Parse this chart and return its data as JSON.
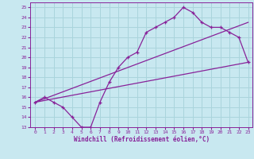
{
  "xlabel": "Windchill (Refroidissement éolien,°C)",
  "xlim": [
    -0.5,
    23.5
  ],
  "ylim": [
    13,
    25.5
  ],
  "xticks": [
    0,
    1,
    2,
    3,
    4,
    5,
    6,
    7,
    8,
    9,
    10,
    11,
    12,
    13,
    14,
    15,
    16,
    17,
    18,
    19,
    20,
    21,
    22,
    23
  ],
  "yticks": [
    13,
    14,
    15,
    16,
    17,
    18,
    19,
    20,
    21,
    22,
    23,
    24,
    25
  ],
  "bg_color": "#c8e8f0",
  "line_color": "#882299",
  "grid_color": "#aad4dc",
  "curve_main": [
    [
      0,
      15.5
    ],
    [
      1,
      16.0
    ],
    [
      2,
      15.5
    ],
    [
      3,
      15.0
    ],
    [
      4,
      14.0
    ],
    [
      5,
      13.0
    ],
    [
      6,
      13.0
    ],
    [
      7,
      15.5
    ],
    [
      8,
      17.5
    ],
    [
      9,
      19.0
    ],
    [
      10,
      20.0
    ],
    [
      11,
      20.5
    ],
    [
      12,
      22.5
    ],
    [
      13,
      23.0
    ],
    [
      14,
      23.5
    ],
    [
      15,
      24.0
    ],
    [
      16,
      25.0
    ],
    [
      17,
      24.5
    ],
    [
      18,
      23.5
    ],
    [
      19,
      23.0
    ],
    [
      20,
      23.0
    ],
    [
      21,
      22.5
    ],
    [
      22,
      22.0
    ],
    [
      23,
      19.5
    ]
  ],
  "curve_upper_diagonal": [
    [
      0,
      15.5
    ],
    [
      23,
      23.5
    ]
  ],
  "curve_lower_diagonal": [
    [
      0,
      15.5
    ],
    [
      23,
      19.5
    ]
  ]
}
